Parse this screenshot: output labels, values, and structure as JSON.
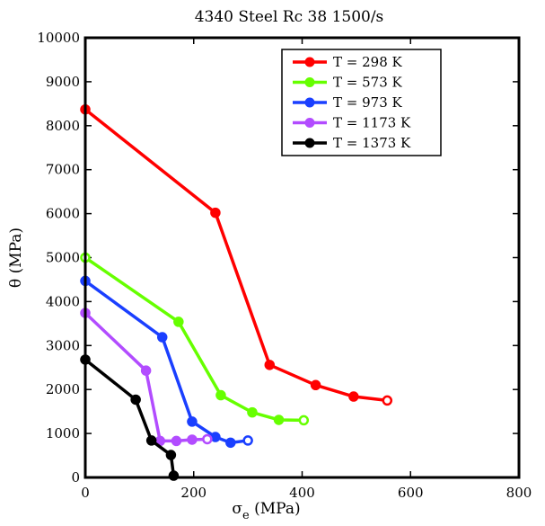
{
  "chart_data": {
    "type": "line",
    "title": "4340 Steel Rc 38 1500/s",
    "xlabel": "σ_e (MPa)",
    "xlabel_main": "σ",
    "xlabel_sub": "e",
    "xlabel_unit": " (MPa)",
    "ylabel": "θ (MPa)",
    "xlim": [
      0,
      800
    ],
    "ylim": [
      0,
      10000
    ],
    "xticks": [
      0,
      200,
      400,
      600,
      800
    ],
    "yticks": [
      0,
      1000,
      2000,
      3000,
      4000,
      5000,
      6000,
      7000,
      8000,
      9000,
      10000
    ],
    "legend_position": "top-right",
    "series": [
      {
        "name": "T = 298 K",
        "color": "#ff0000",
        "x": [
          0,
          240,
          340,
          425,
          495,
          557
        ],
        "y": [
          8370,
          6020,
          2560,
          2100,
          1840,
          1750
        ]
      },
      {
        "name": "T = 573 K",
        "color": "#66ff00",
        "x": [
          0,
          172,
          250,
          308,
          357,
          403
        ],
        "y": [
          5000,
          3540,
          1870,
          1480,
          1310,
          1300
        ]
      },
      {
        "name": "T = 973 K",
        "color": "#1a3fff",
        "x": [
          0,
          142,
          197,
          240,
          268,
          300
        ],
        "y": [
          4470,
          3190,
          1270,
          920,
          790,
          840
        ]
      },
      {
        "name": "T = 1173 K",
        "color": "#b24cff",
        "x": [
          0,
          112,
          138,
          168,
          197,
          225
        ],
        "y": [
          3740,
          2430,
          830,
          830,
          860,
          870
        ]
      },
      {
        "name": "T = 1373 K",
        "color": "#000000",
        "x": [
          0,
          93,
          122,
          158,
          163
        ],
        "y": [
          2680,
          1770,
          840,
          510,
          40
        ]
      }
    ]
  }
}
